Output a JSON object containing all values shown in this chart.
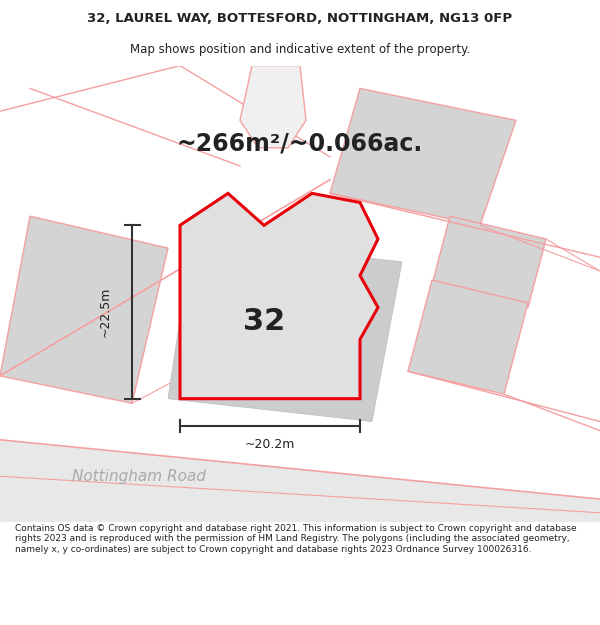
{
  "title_line1": "32, LAUREL WAY, BOTTESFORD, NOTTINGHAM, NG13 0FP",
  "title_line2": "Map shows position and indicative extent of the property.",
  "area_label": "~266m²/~0.066ac.",
  "plot_number": "32",
  "dim_width": "~20.2m",
  "dim_height": "~22.5m",
  "road_label": "Nottingham Road",
  "footer": "Contains OS data © Crown copyright and database right 2021. This information is subject to Crown copyright and database rights 2023 and is reproduced with the permission of HM Land Registry. The polygons (including the associated geometry, namely x, y co-ordinates) are subject to Crown copyright and database rights 2023 Ordnance Survey 100026316.",
  "bg_color": "#ffffff",
  "map_bg": "#f0f0f0",
  "plot_fill": "#e0e0e0",
  "plot_outline": "#e8000a",
  "neighbor_fill": "#d4d4d4",
  "neighbor_outline": "#f5a0a0",
  "road_color": "#f5a0a0",
  "dim_line_color": "#333333",
  "text_color": "#222222",
  "road_text_color": "#aaaaaa",
  "title_fontsize": 9.5,
  "subtitle_fontsize": 8.5,
  "area_fontsize": 17,
  "number_fontsize": 22,
  "dim_fontsize": 9,
  "road_fontsize": 11,
  "footer_fontsize": 6.5
}
